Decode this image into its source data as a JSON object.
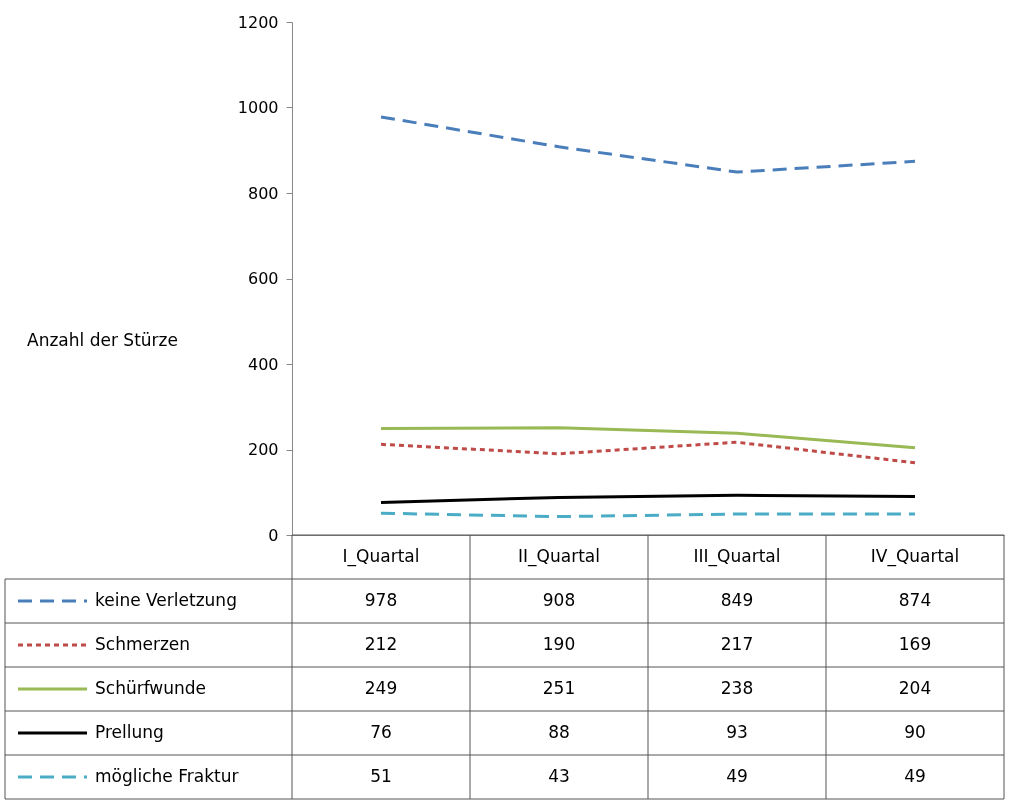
{
  "chart_data": {
    "type": "line",
    "ylabel": "Anzahl der Stürze",
    "categories": [
      "I_Quartal",
      "II_Quartal",
      "III_Quartal",
      "IV_Quartal"
    ],
    "series": [
      {
        "name": "keine Verletzung",
        "color": "#4a7ebb",
        "line_style": "dashed",
        "values": [
          978,
          908,
          849,
          874
        ]
      },
      {
        "name": "Schmerzen",
        "color": "#be4b48",
        "line_style": "dotted",
        "values": [
          212,
          190,
          217,
          169
        ]
      },
      {
        "name": "Schürfwunde",
        "color": "#98b954",
        "line_style": "solid",
        "values": [
          249,
          251,
          238,
          204
        ]
      },
      {
        "name": "Prellung",
        "color": "#000000",
        "line_style": "solid",
        "values": [
          76,
          88,
          93,
          90
        ]
      },
      {
        "name": "mögliche Fraktur",
        "color": "#4bacc6",
        "line_style": "dashed",
        "values": [
          51,
          43,
          49,
          49
        ]
      }
    ],
    "ylim": [
      0,
      1200
    ],
    "yticks": [
      0,
      200,
      400,
      600,
      800,
      1000,
      1200
    ],
    "data_labels": true,
    "legend": "bottom left",
    "marker": "none"
  }
}
